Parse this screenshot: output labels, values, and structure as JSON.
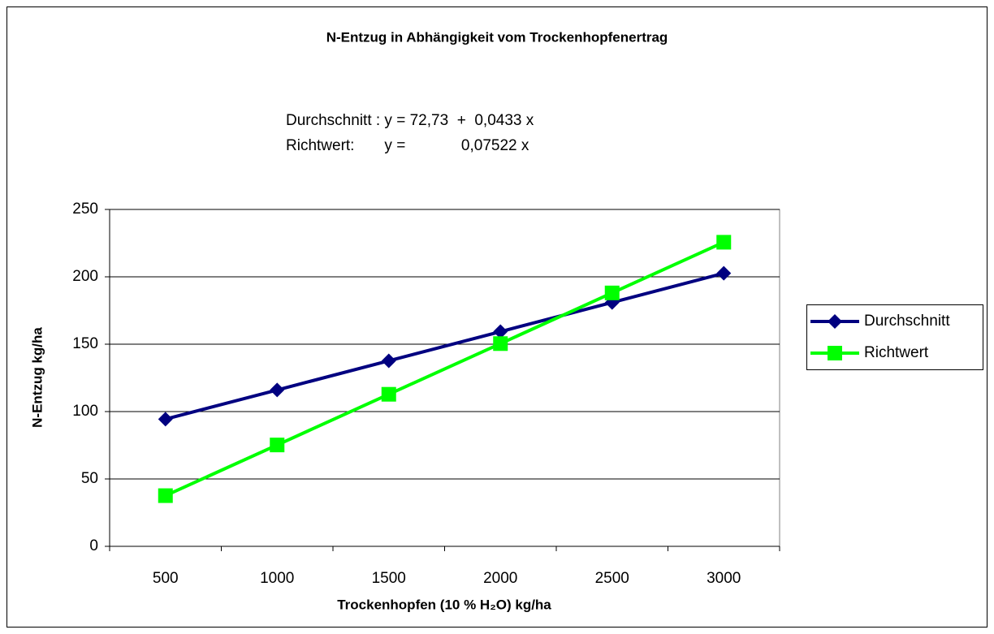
{
  "chart_data": {
    "type": "line",
    "title": "N-Entzug in Abhängigkeit vom Trockenhopfenertrag",
    "annotations": [
      "Durchschnitt : y = 72,73  +  0,0433 x",
      "Richtwert:       y =             0,07522 x"
    ],
    "xlabel": "Trockenhopfen (10 % H₂O) kg/ha",
    "ylabel": "N-Entzug kg/ha",
    "categories": [
      "500",
      "1000",
      "1500",
      "2000",
      "2500",
      "3000"
    ],
    "series": [
      {
        "name": "Durchschnitt",
        "color": "#000080",
        "marker": "diamond",
        "values": [
          94.38,
          116.03,
          137.68,
          159.33,
          180.98,
          202.63
        ]
      },
      {
        "name": "Richtwert",
        "color": "#00ff00",
        "marker": "square",
        "values": [
          37.61,
          75.22,
          112.83,
          150.44,
          188.05,
          225.66
        ]
      }
    ],
    "ylim": [
      0,
      250
    ],
    "yticks": [
      0,
      50,
      100,
      150,
      200,
      250
    ],
    "grid": true,
    "legend": "right"
  }
}
